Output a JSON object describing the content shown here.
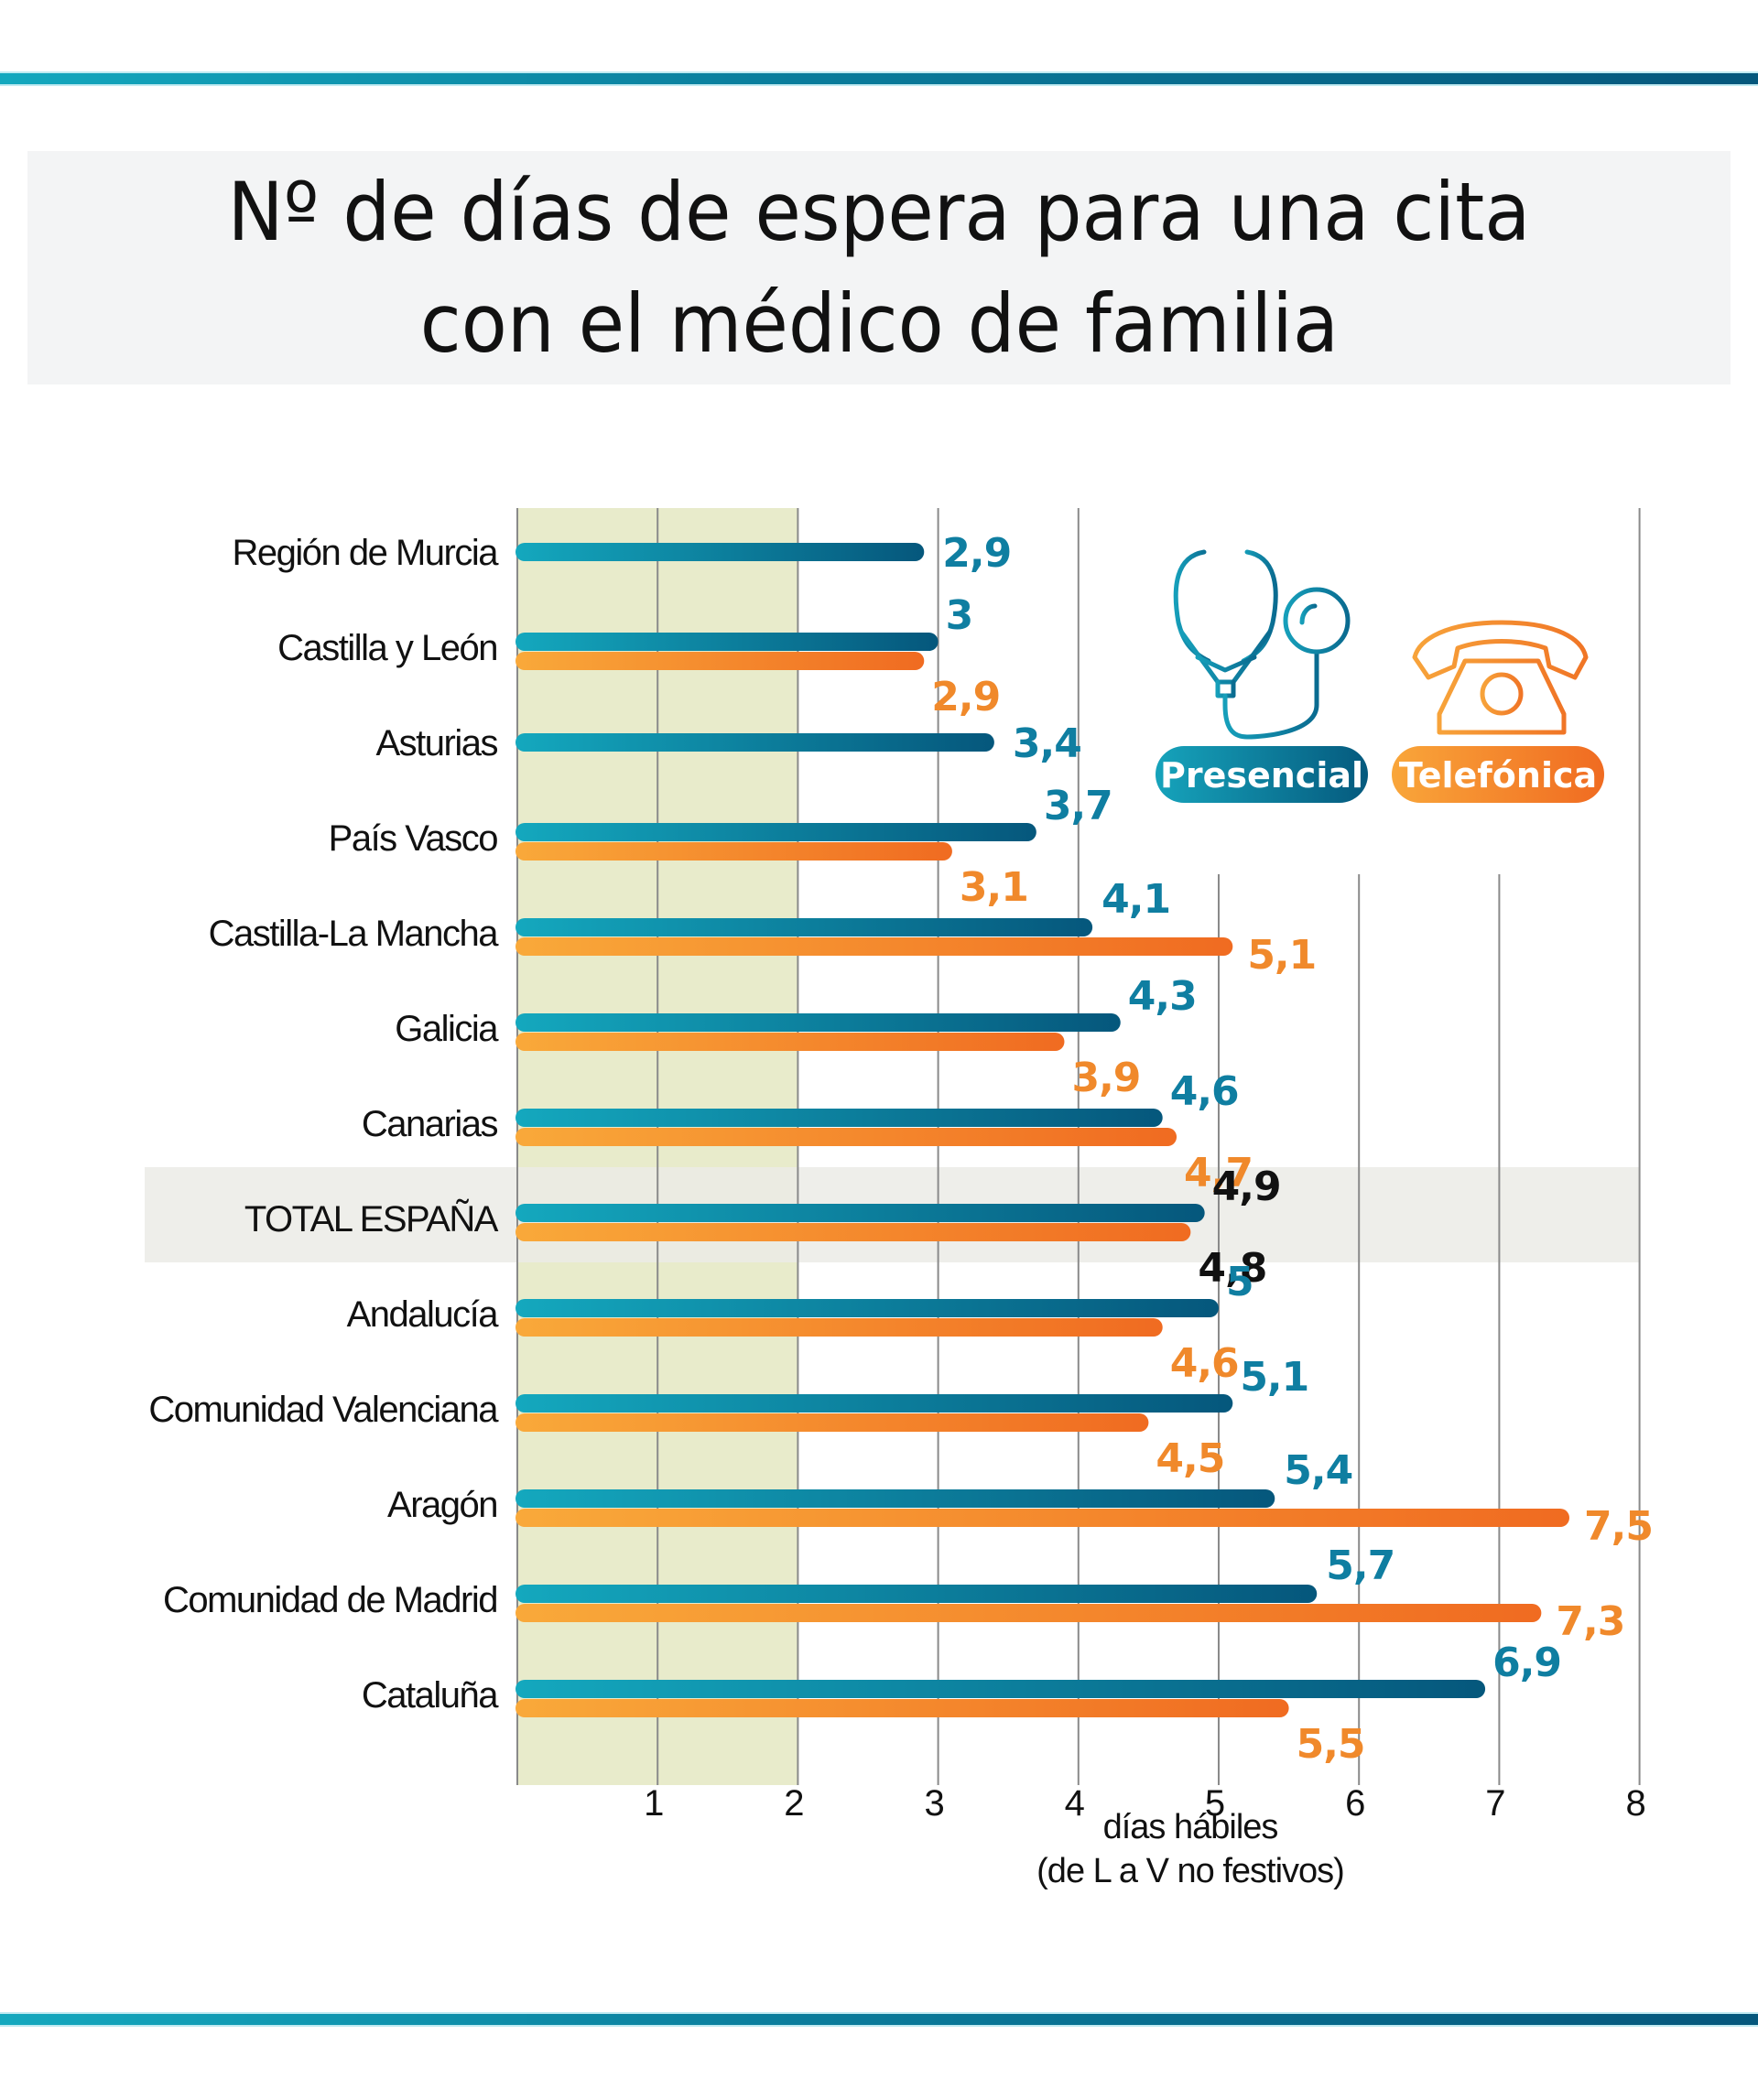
{
  "title": {
    "line1": "Nº de días de espera para una cita",
    "line2": "con el médico de familia"
  },
  "legend": {
    "presencial": {
      "label": "Presencial",
      "icon": "stethoscope-icon",
      "color": "#0a7d9c"
    },
    "telefonica": {
      "label": "Telefónica",
      "icon": "telephone-icon",
      "color": "#f08a2a"
    }
  },
  "colors": {
    "presencial_start": "#14a8be",
    "presencial_end": "#05577c",
    "telefonica_start": "#f9a93a",
    "telefonica_end": "#f06b21",
    "presencial_label": "#0f7ea1",
    "telefonica_label": "#f0892b",
    "total_label": "#111111",
    "target_band": "#e8ebcb",
    "total_band": "#ebebe6",
    "grid": "#8a8a8a"
  },
  "chart_data": {
    "type": "bar",
    "orientation": "horizontal",
    "title": "Nº de días de espera para una cita con el médico de familia",
    "xlabel": "días hábiles\n(de L a V no festivos)",
    "xlabel_lines": [
      "días hábiles",
      "(de L a V no festivos)"
    ],
    "ylabel": "",
    "xlim": [
      0,
      8
    ],
    "xticks": [
      "1",
      "2",
      "3",
      "4",
      "5",
      "6",
      "7",
      "8"
    ],
    "grid": true,
    "highlight_band": {
      "from": 0,
      "to": 2,
      "description": "shaded region 0–2 days"
    },
    "highlight_row": "TOTAL ESPAÑA",
    "legend_position": "top-right",
    "categories": [
      "Región de Murcia",
      "Castilla y León",
      "Asturias",
      "País Vasco",
      "Castilla-La Mancha",
      "Galicia",
      "Canarias",
      "TOTAL ESPAÑA",
      "Andalucía",
      "Comunidad Valenciana",
      "Aragón",
      "Comunidad de Madrid",
      "Cataluña"
    ],
    "series": [
      {
        "name": "Presencial",
        "values": [
          2.9,
          3.0,
          3.4,
          3.7,
          4.1,
          4.3,
          4.6,
          4.9,
          5.0,
          5.1,
          5.4,
          5.7,
          6.9
        ],
        "labels": [
          "2,9",
          "3",
          "3,4",
          "3,7",
          "4,1",
          "4,3",
          "4,6",
          "4,9",
          "5",
          "5,1",
          "5,4",
          "5,7",
          "6,9"
        ]
      },
      {
        "name": "Telefónica",
        "values": [
          null,
          2.9,
          null,
          3.1,
          5.1,
          3.9,
          4.7,
          4.8,
          4.6,
          4.5,
          7.5,
          7.3,
          5.5
        ],
        "labels": [
          null,
          "2,9",
          null,
          "3,1",
          "5,1",
          "3,9",
          "4,7",
          "4,8",
          "4,6",
          "4,5",
          "7,5",
          "7,3",
          "5,5"
        ]
      }
    ]
  }
}
